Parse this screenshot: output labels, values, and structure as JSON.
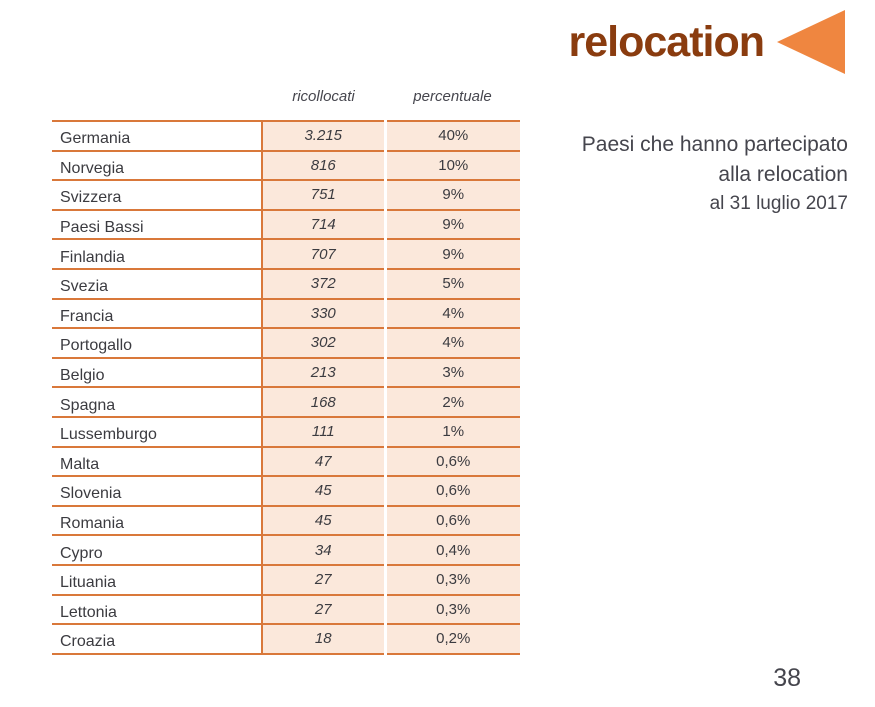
{
  "logo": {
    "title": "relocation",
    "title_color": "#8a3c0f",
    "triangle_icon_color": "#ef8640"
  },
  "caption": {
    "line1": "Paesi che hanno partecipato",
    "line2": "alla relocation",
    "line3": "al 31 luglio 2017"
  },
  "table": {
    "headers": {
      "country": "",
      "ricollocati": "ricollocati",
      "percentuale": "percentuale"
    },
    "rows": [
      {
        "country": "Germania",
        "ricollocati": "3.215",
        "percentuale": "40%"
      },
      {
        "country": "Norvegia",
        "ricollocati": "816",
        "percentuale": "10%"
      },
      {
        "country": "Svizzera",
        "ricollocati": "751",
        "percentuale": "9%"
      },
      {
        "country": "Paesi Bassi",
        "ricollocati": "714",
        "percentuale": "9%"
      },
      {
        "country": "Finlandia",
        "ricollocati": "707",
        "percentuale": "9%"
      },
      {
        "country": "Svezia",
        "ricollocati": "372",
        "percentuale": "5%"
      },
      {
        "country": "Francia",
        "ricollocati": "330",
        "percentuale": "4%"
      },
      {
        "country": "Portogallo",
        "ricollocati": "302",
        "percentuale": "4%"
      },
      {
        "country": "Belgio",
        "ricollocati": "213",
        "percentuale": "3%"
      },
      {
        "country": "Spagna",
        "ricollocati": "168",
        "percentuale": "2%"
      },
      {
        "country": "Lussemburgo",
        "ricollocati": "111",
        "percentuale": "1%"
      },
      {
        "country": "Malta",
        "ricollocati": "47",
        "percentuale": "0,6%"
      },
      {
        "country": "Slovenia",
        "ricollocati": "45",
        "percentuale": "0,6%"
      },
      {
        "country": "Romania",
        "ricollocati": "45",
        "percentuale": "0,6%"
      },
      {
        "country": "Cypro",
        "ricollocati": "34",
        "percentuale": "0,4%"
      },
      {
        "country": "Lituania",
        "ricollocati": "27",
        "percentuale": "0,3%"
      },
      {
        "country": "Lettonia",
        "ricollocati": "27",
        "percentuale": "0,3%"
      },
      {
        "country": "Croazia",
        "ricollocati": "18",
        "percentuale": "0,2%"
      }
    ]
  },
  "page": {
    "number": "38"
  },
  "colors": {
    "border_orange": "#d9783a",
    "row_fill_peach": "#fbe8db",
    "title_brown": "#8a3c0f",
    "triangle_orange": "#ef8640",
    "text_dark": "#3b3b40",
    "caption_gray": "#45454d"
  }
}
